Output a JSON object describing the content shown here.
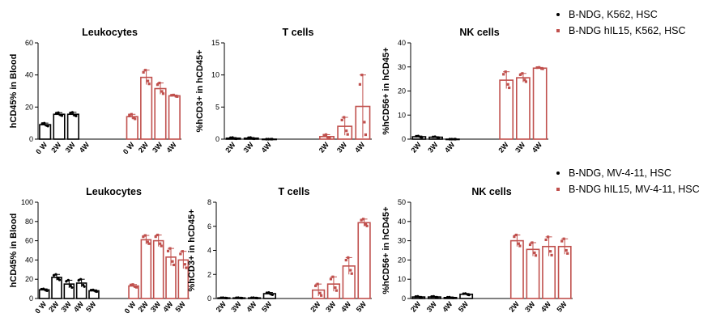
{
  "legends": [
    {
      "items": [
        {
          "label": "B-NDG, K562, HSC",
          "marker": "circle",
          "color": "#000000"
        },
        {
          "label": "B-NDG hIL15, K562, HSC",
          "marker": "square",
          "color": "#c0504d"
        }
      ]
    },
    {
      "items": [
        {
          "label": "B-NDG, MV-4-11, HSC",
          "marker": "circle",
          "color": "#000000"
        },
        {
          "label": "B-NDG hIL15, MV-4-11, HSC",
          "marker": "square",
          "color": "#c0504d"
        }
      ]
    }
  ],
  "colors": {
    "group1": "#000000",
    "group2": "#c0504d"
  },
  "chart_data": [
    {
      "type": "bar",
      "title": "Leukocytes",
      "ylabel": "hCD45% in Blood",
      "ylim": [
        0,
        60
      ],
      "yticks": [
        0,
        20,
        40,
        60
      ],
      "groups": [
        {
          "name": "B-NDG, K562, HSC",
          "color": "#000000",
          "marker": "circle",
          "categories": [
            "0 W",
            "2W",
            "3W",
            "4W"
          ],
          "values": [
            9,
            15.5,
            15.5,
            null
          ],
          "errors": [
            1,
            1,
            1.2,
            null
          ]
        },
        {
          "name": "B-NDG hIL15, K562, HSC",
          "color": "#c0504d",
          "marker": "square",
          "categories": [
            "0 W",
            "2W",
            "3W",
            "4W"
          ],
          "values": [
            14,
            38.5,
            31.5,
            27
          ],
          "errors": [
            1.5,
            4.5,
            3.5,
            0.5
          ]
        }
      ]
    },
    {
      "type": "bar",
      "title": "T cells",
      "ylabel": "%hCD3+ in hCD45+",
      "ylim": [
        0,
        15
      ],
      "yticks": [
        0,
        5,
        10,
        15
      ],
      "groups": [
        {
          "name": "B-NDG, K562, HSC",
          "color": "#000000",
          "marker": "circle",
          "categories": [
            "2W",
            "3W",
            "4W"
          ],
          "values": [
            0.15,
            0.15,
            0
          ],
          "errors": [
            0.1,
            0.1,
            0
          ]
        },
        {
          "name": "B-NDG hIL15, K562, HSC",
          "color": "#c0504d",
          "marker": "square",
          "categories": [
            "2W",
            "3W",
            "4W"
          ],
          "values": [
            0.4,
            2,
            5.1
          ],
          "errors": [
            0.3,
            1.4,
            4.9
          ]
        }
      ]
    },
    {
      "type": "bar",
      "title": "NK cells",
      "ylabel": "%hCD56+ in hCD45+",
      "ylim": [
        0,
        40
      ],
      "yticks": [
        0,
        10,
        20,
        30,
        40
      ],
      "groups": [
        {
          "name": "B-NDG, K562, HSC",
          "color": "#000000",
          "marker": "circle",
          "categories": [
            "2W",
            "3W",
            "4W"
          ],
          "values": [
            1,
            0.8,
            0
          ],
          "errors": [
            0.3,
            0.2,
            0
          ]
        },
        {
          "name": "B-NDG hIL15, K562, HSC",
          "color": "#c0504d",
          "marker": "square",
          "categories": [
            "2W",
            "3W",
            "4W"
          ],
          "values": [
            24.5,
            25.5,
            29.5
          ],
          "errors": [
            3.5,
            1.8,
            0.3
          ]
        }
      ]
    },
    {
      "type": "bar",
      "title": "Leukocytes",
      "ylabel": "hCD45% in Blood",
      "ylim": [
        0,
        100
      ],
      "yticks": [
        0,
        20,
        40,
        60,
        80,
        100
      ],
      "groups": [
        {
          "name": "B-NDG, MV-4-11, HSC",
          "color": "#000000",
          "marker": "circle",
          "categories": [
            "0 W",
            "2W",
            "3W",
            "4W",
            "5W"
          ],
          "values": [
            9,
            22,
            15,
            16,
            8
          ],
          "errors": [
            1,
            3,
            4,
            4,
            1
          ]
        },
        {
          "name": "B-NDG hIL15, MV-4-11, HSC",
          "color": "#c0504d",
          "marker": "square",
          "categories": [
            "0 W",
            "2W",
            "3W",
            "4W",
            "5W"
          ],
          "values": [
            13,
            61,
            60,
            43,
            40
          ],
          "errors": [
            1.5,
            4.5,
            6,
            9,
            9
          ]
        }
      ]
    },
    {
      "type": "bar",
      "title": "T cells",
      "ylabel": "%hCD3+ in hCD45+",
      "ylim": [
        0,
        8
      ],
      "yticks": [
        0,
        2,
        4,
        6,
        8
      ],
      "groups": [
        {
          "name": "B-NDG, MV-4-11, HSC",
          "color": "#000000",
          "marker": "circle",
          "categories": [
            "2W",
            "3W",
            "4W",
            "5W"
          ],
          "values": [
            0.05,
            0.05,
            0.05,
            0.4
          ],
          "errors": [
            0.02,
            0.02,
            0.02,
            0.1
          ]
        },
        {
          "name": "B-NDG hIL15, MV-4-11, HSC",
          "color": "#c0504d",
          "marker": "square",
          "categories": [
            "2W",
            "3W",
            "4W",
            "5W"
          ],
          "values": [
            0.7,
            1.2,
            2.7,
            6.3
          ],
          "errors": [
            0.5,
            0.6,
            0.7,
            0.3
          ]
        }
      ]
    },
    {
      "type": "bar",
      "title": "NK cells",
      "ylabel": "%hCD56+ in hCD45+",
      "ylim": [
        0,
        50
      ],
      "yticks": [
        0,
        10,
        20,
        30,
        40,
        50
      ],
      "groups": [
        {
          "name": "B-NDG, MV-4-11, HSC",
          "color": "#000000",
          "marker": "circle",
          "categories": [
            "2W",
            "3W",
            "4W",
            "5W"
          ],
          "values": [
            0.8,
            0.8,
            0.5,
            2.2
          ],
          "errors": [
            0.3,
            0.3,
            0.2,
            0.4
          ]
        },
        {
          "name": "B-NDG hIL15, MV-4-11, HSC",
          "color": "#c0504d",
          "marker": "square",
          "categories": [
            "2W",
            "3W",
            "4W",
            "5W"
          ],
          "values": [
            30,
            25.5,
            27,
            27
          ],
          "errors": [
            3,
            3.5,
            5,
            4
          ]
        }
      ]
    }
  ]
}
